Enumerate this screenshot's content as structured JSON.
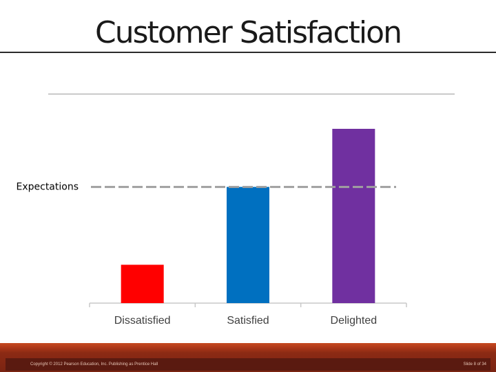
{
  "slide": {
    "title": "Customer Satisfaction",
    "copyright": "Copyright © 2012 Pearson Education, Inc. Publishing as Prentice Hall",
    "slide_number": "Slide 8 of 34"
  },
  "chart_data": {
    "type": "bar",
    "title": "",
    "categories": [
      "Dissatisfied",
      "Satisfied",
      "Delighted"
    ],
    "values": [
      33,
      100,
      150
    ],
    "ylim": [
      0,
      150
    ],
    "colors": [
      "#ff0000",
      "#0070c0",
      "#7030a0"
    ],
    "reference_line": {
      "label": "Expectations",
      "value": 100,
      "style": "dashed",
      "color": "#a0a0a0"
    },
    "grid": false,
    "legend": "none"
  }
}
